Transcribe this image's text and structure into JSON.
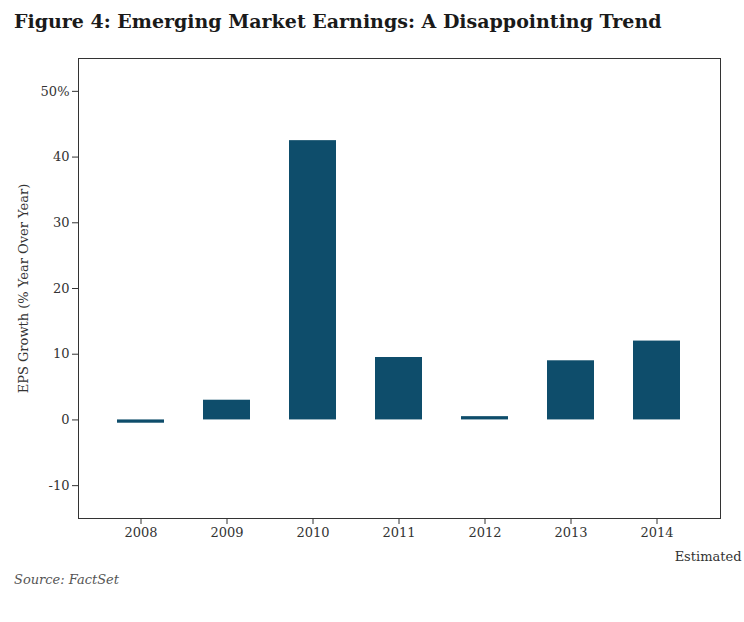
{
  "chart_data": {
    "type": "bar",
    "title": "Figure 4: Emerging Market Earnings: A Disappointing Trend",
    "categories": [
      "2008",
      "2009",
      "2010",
      "2011",
      "2012",
      "2013",
      "2014"
    ],
    "values": [
      -0.5,
      3.0,
      42.5,
      9.5,
      0.5,
      9.0,
      12.0
    ],
    "color": "#0e4d6b",
    "ylabel": "EPS Growth (% Year Over Year)",
    "xlabel": "Estimated",
    "source": "Source: FactSet",
    "ylim": [
      -15,
      55
    ],
    "yticks": [
      -10,
      0,
      10,
      20,
      30,
      40,
      {
        "value": 50,
        "label": "50%"
      }
    ],
    "grid": false
  }
}
